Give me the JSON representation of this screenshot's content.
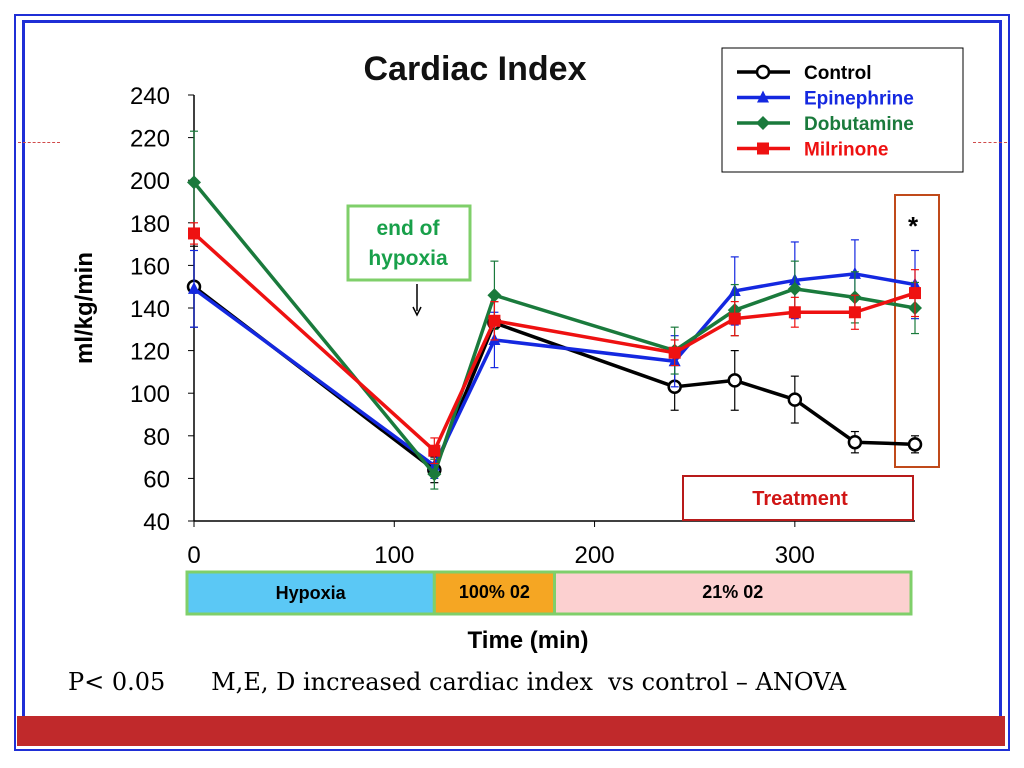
{
  "footnote": {
    "p_value": "P< 0.05",
    "statement": "M,E, D increased cardiac index  vs control – ANOVA"
  },
  "annotations": {
    "end_of_hypoxia_line1": "end of",
    "end_of_hypoxia_line2": "hypoxia",
    "asterisk": "*",
    "treatment": "Treatment"
  },
  "phase_bar": [
    {
      "label": "Hypoxia",
      "start": 0,
      "end": 120,
      "color": "#5bc8f5"
    },
    {
      "label": "100% 02",
      "start": 120,
      "end": 180,
      "color": "#f5a623"
    },
    {
      "label": "21% 02",
      "start": 180,
      "end": 360,
      "color": "#fcd0d0"
    }
  ],
  "colors": {
    "control": "#000000",
    "epinephrine": "#1428e0",
    "dobutamine": "#1a7a3c",
    "milrinone": "#ee1111",
    "annotation_box_green": "#7fcf6a",
    "annotation_text_green": "#18a04a",
    "treatment_box": "#b81a1a",
    "asterisk_box": "#c04a1a"
  },
  "chart_data": {
    "type": "line",
    "title": "Cardiac Index",
    "xlabel": "Time (min)",
    "ylabel": "ml/kg/min",
    "xlim": [
      0,
      360
    ],
    "ylim": [
      40,
      240
    ],
    "xticks": [
      0,
      100,
      200,
      300
    ],
    "yticks": [
      40,
      60,
      80,
      100,
      120,
      140,
      160,
      180,
      200,
      220,
      240
    ],
    "grid": false,
    "legend_position": "top-right",
    "series": [
      {
        "name": "Control",
        "color": "#000000",
        "marker": "circle-open",
        "x": [
          0,
          120,
          150,
          240,
          270,
          300,
          330,
          360
        ],
        "y": [
          150,
          64,
          133,
          103,
          106,
          97,
          77,
          76
        ],
        "err": [
          19,
          6,
          10,
          11,
          14,
          11,
          5,
          4
        ]
      },
      {
        "name": "Epinephrine",
        "color": "#1428e0",
        "marker": "triangle",
        "x": [
          0,
          120,
          150,
          240,
          270,
          300,
          330,
          360
        ],
        "y": [
          149,
          66,
          125,
          115,
          148,
          153,
          156,
          151
        ],
        "err": [
          18,
          6,
          13,
          12,
          16,
          18,
          16,
          16
        ]
      },
      {
        "name": "Dobutamine",
        "color": "#1a7a3c",
        "marker": "diamond",
        "x": [
          0,
          120,
          150,
          240,
          270,
          300,
          330,
          360
        ],
        "y": [
          199,
          62,
          146,
          120,
          139,
          149,
          145,
          140
        ],
        "err": [
          24,
          7,
          16,
          11,
          12,
          13,
          12,
          12
        ]
      },
      {
        "name": "Milrinone",
        "color": "#ee1111",
        "marker": "square",
        "x": [
          0,
          120,
          150,
          240,
          270,
          300,
          330,
          360
        ],
        "y": [
          175,
          73,
          134,
          119,
          135,
          138,
          138,
          147
        ],
        "err": [
          5,
          6,
          9,
          6,
          8,
          7,
          8,
          11
        ]
      }
    ]
  }
}
